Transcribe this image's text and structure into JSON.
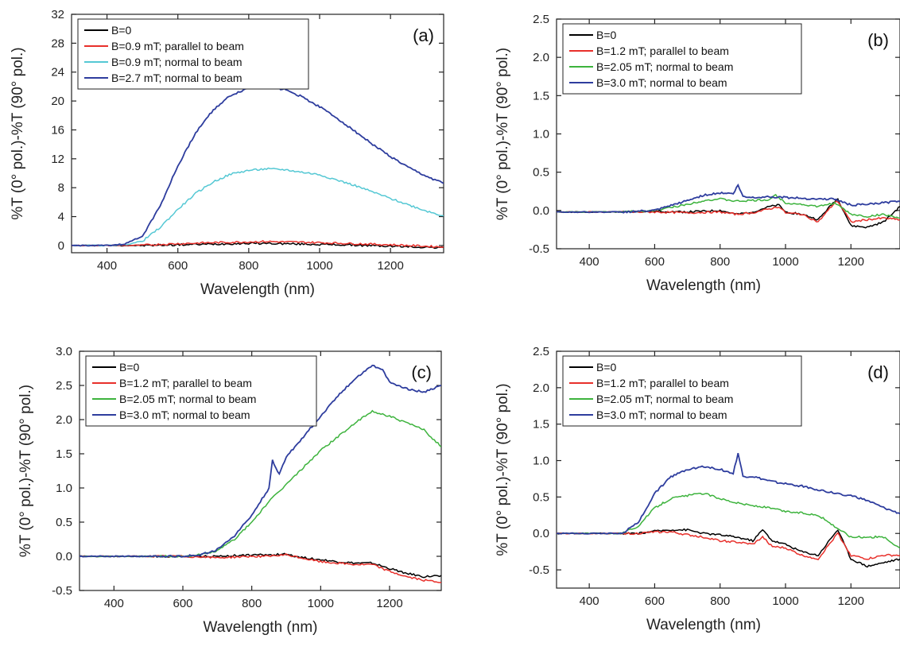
{
  "chart_data": [
    {
      "panel": "(a)",
      "type": "line",
      "xlabel": "Wavelength (nm)",
      "ylabel": "%T (0° pol.)-%T (90° pol.)",
      "xlim": [
        300,
        1350
      ],
      "ylim": [
        -1,
        32
      ],
      "xticks": [
        400,
        600,
        800,
        1000,
        1200
      ],
      "yticks": [
        0,
        4,
        8,
        12,
        16,
        20,
        24,
        28,
        32
      ],
      "legend_position": "top-left",
      "series": [
        {
          "name": "B=0",
          "color": "#000000",
          "x": [
            300,
            400,
            500,
            600,
            700,
            800,
            850,
            900,
            1000,
            1100,
            1200,
            1350
          ],
          "y": [
            0,
            0,
            0,
            0.1,
            0.2,
            0.3,
            0.3,
            0.25,
            0.15,
            0.05,
            -0.1,
            -0.3
          ]
        },
        {
          "name": "B=0.9 mT; parallel to beam",
          "color": "#e8302b",
          "x": [
            300,
            400,
            450,
            500,
            550,
            600,
            700,
            800,
            850,
            900,
            1000,
            1100,
            1200,
            1350
          ],
          "y": [
            0,
            0,
            0,
            0.05,
            0.15,
            0.25,
            0.4,
            0.5,
            0.55,
            0.5,
            0.4,
            0.25,
            0.1,
            -0.2
          ]
        },
        {
          "name": "B=0.9 mT; normal to beam",
          "color": "#55c8d4",
          "x": [
            300,
            400,
            450,
            500,
            550,
            600,
            650,
            700,
            750,
            800,
            850,
            900,
            1000,
            1100,
            1200,
            1300,
            1350
          ],
          "y": [
            0,
            0,
            0.1,
            0.6,
            2.5,
            5.0,
            7.2,
            8.8,
            9.9,
            10.4,
            10.6,
            10.5,
            9.8,
            8.3,
            6.5,
            4.8,
            4.1
          ]
        },
        {
          "name": "B=2.7 mT; normal to beam",
          "color": "#2e3d9e",
          "x": [
            300,
            400,
            450,
            500,
            550,
            600,
            650,
            700,
            750,
            800,
            850,
            900,
            950,
            1000,
            1050,
            1100,
            1150,
            1200,
            1250,
            1300,
            1350
          ],
          "y": [
            0,
            0,
            0.2,
            1.3,
            5.5,
            11.0,
            15.6,
            18.8,
            20.8,
            21.8,
            22.0,
            21.6,
            20.6,
            19.2,
            17.6,
            15.8,
            14.0,
            12.3,
            10.8,
            9.6,
            8.6
          ]
        }
      ]
    },
    {
      "panel": "(b)",
      "type": "line",
      "xlabel": "Wavelength (nm)",
      "ylabel": "%T (0° pol.)-%T (90° pol.)",
      "xlim": [
        300,
        1350
      ],
      "ylim": [
        -0.5,
        2.5
      ],
      "xticks": [
        400,
        600,
        800,
        1000,
        1200
      ],
      "yticks": [
        -0.5,
        0.0,
        0.5,
        1.0,
        1.5,
        2.0,
        2.5
      ],
      "legend_position": "top-left",
      "series": [
        {
          "name": "B=0",
          "color": "#000000",
          "x": [
            300,
            500,
            600,
            700,
            800,
            850,
            900,
            950,
            980,
            1000,
            1050,
            1100,
            1150,
            1160,
            1200,
            1250,
            1300,
            1350
          ],
          "y": [
            -0.02,
            -0.02,
            -0.01,
            -0.02,
            0.0,
            -0.05,
            -0.02,
            0.05,
            0.07,
            -0.02,
            -0.05,
            -0.12,
            0.12,
            0.15,
            -0.2,
            -0.22,
            -0.15,
            0.05
          ]
        },
        {
          "name": "B=1.2 mT; parallel to beam",
          "color": "#e8302b",
          "x": [
            300,
            500,
            600,
            700,
            800,
            850,
            900,
            950,
            980,
            1000,
            1050,
            1100,
            1150,
            1160,
            1200,
            1250,
            1300,
            1350
          ],
          "y": [
            -0.02,
            -0.02,
            -0.02,
            -0.03,
            -0.02,
            -0.05,
            -0.03,
            0.02,
            0.05,
            -0.03,
            -0.05,
            -0.15,
            0.1,
            0.12,
            -0.15,
            -0.12,
            -0.1,
            -0.12
          ]
        },
        {
          "name": "B=2.05 mT; normal to beam",
          "color": "#3db33d",
          "x": [
            300,
            500,
            600,
            700,
            750,
            800,
            850,
            900,
            950,
            970,
            1000,
            1050,
            1100,
            1150,
            1200,
            1250,
            1300,
            1350
          ],
          "y": [
            -0.02,
            -0.02,
            0.0,
            0.08,
            0.13,
            0.15,
            0.12,
            0.13,
            0.14,
            0.2,
            0.1,
            0.08,
            0.05,
            0.1,
            -0.05,
            -0.08,
            -0.05,
            -0.1
          ]
        },
        {
          "name": "B=3.0 mT; normal to beam",
          "color": "#2e3d9e",
          "x": [
            300,
            500,
            600,
            700,
            750,
            800,
            840,
            855,
            870,
            900,
            950,
            1000,
            1050,
            1100,
            1150,
            1200,
            1250,
            1300,
            1350
          ],
          "y": [
            -0.02,
            -0.02,
            0.0,
            0.13,
            0.2,
            0.23,
            0.22,
            0.33,
            0.18,
            0.17,
            0.18,
            0.17,
            0.16,
            0.15,
            0.15,
            0.07,
            0.08,
            0.1,
            0.12
          ]
        }
      ]
    },
    {
      "panel": "(c)",
      "type": "line",
      "xlabel": "Wavelength (nm)",
      "ylabel": "%T (0° pol.)-%T (90° pol.)",
      "xlim": [
        300,
        1350
      ],
      "ylim": [
        -0.5,
        3.0
      ],
      "xticks": [
        400,
        600,
        800,
        1000,
        1200
      ],
      "yticks": [
        -0.5,
        0.0,
        0.5,
        1.0,
        1.5,
        2.0,
        2.5,
        3.0
      ],
      "legend_position": "top-left",
      "series": [
        {
          "name": "B=0",
          "color": "#000000",
          "x": [
            300,
            500,
            600,
            700,
            800,
            850,
            900,
            950,
            1000,
            1050,
            1100,
            1150,
            1200,
            1250,
            1300,
            1350
          ],
          "y": [
            0,
            0,
            0,
            0,
            0.02,
            0.02,
            0.03,
            -0.02,
            -0.05,
            -0.08,
            -0.1,
            -0.1,
            -0.18,
            -0.25,
            -0.3,
            -0.28
          ]
        },
        {
          "name": "B=1.2 mT; parallel to beam",
          "color": "#e8302b",
          "x": [
            300,
            500,
            600,
            700,
            800,
            850,
            900,
            950,
            1000,
            1050,
            1100,
            1150,
            1200,
            1250,
            1300,
            1350
          ],
          "y": [
            0,
            0,
            0,
            -0.02,
            0.0,
            0.0,
            0.02,
            -0.03,
            -0.08,
            -0.1,
            -0.12,
            -0.12,
            -0.22,
            -0.3,
            -0.35,
            -0.38
          ]
        },
        {
          "name": "B=2.05 mT; normal to beam",
          "color": "#3db33d",
          "x": [
            300,
            600,
            650,
            700,
            750,
            800,
            850,
            900,
            950,
            1000,
            1050,
            1100,
            1150,
            1200,
            1250,
            1300,
            1350
          ],
          "y": [
            0,
            0,
            0.02,
            0.08,
            0.25,
            0.5,
            0.8,
            1.05,
            1.3,
            1.55,
            1.75,
            1.95,
            2.12,
            2.05,
            1.95,
            1.85,
            1.6
          ]
        },
        {
          "name": "B=3.0 mT; normal to beam",
          "color": "#2e3d9e",
          "x": [
            300,
            600,
            650,
            700,
            750,
            800,
            850,
            860,
            880,
            900,
            950,
            1000,
            1050,
            1100,
            1150,
            1180,
            1200,
            1250,
            1300,
            1350
          ],
          "y": [
            0,
            0,
            0.02,
            0.1,
            0.3,
            0.6,
            1.0,
            1.4,
            1.2,
            1.45,
            1.75,
            2.05,
            2.35,
            2.6,
            2.8,
            2.72,
            2.55,
            2.45,
            2.4,
            2.5
          ]
        }
      ]
    },
    {
      "panel": "(d)",
      "type": "line",
      "xlabel": "Wavelength (nm)",
      "ylabel": "%T (0° pol.)-%T (90° pol.)",
      "xlim": [
        300,
        1350
      ],
      "ylim": [
        -0.75,
        2.5
      ],
      "xticks": [
        400,
        600,
        800,
        1000,
        1200
      ],
      "yticks": [
        -0.5,
        0.0,
        0.5,
        1.0,
        1.5,
        2.0,
        2.5
      ],
      "legend_position": "top-left",
      "series": [
        {
          "name": "B=0",
          "color": "#000000",
          "x": [
            300,
            500,
            550,
            600,
            650,
            700,
            750,
            800,
            850,
            900,
            930,
            960,
            1000,
            1050,
            1100,
            1150,
            1160,
            1200,
            1250,
            1300,
            1350
          ],
          "y": [
            0,
            0,
            0,
            0.03,
            0.05,
            0.05,
            0.0,
            -0.02,
            -0.05,
            -0.1,
            0.05,
            -0.1,
            -0.15,
            -0.25,
            -0.3,
            0.0,
            0.05,
            -0.35,
            -0.45,
            -0.4,
            -0.35
          ]
        },
        {
          "name": "B=1.2 mT; parallel to beam",
          "color": "#e8302b",
          "x": [
            300,
            500,
            550,
            600,
            650,
            700,
            750,
            800,
            850,
            900,
            930,
            960,
            1000,
            1050,
            1100,
            1150,
            1160,
            1200,
            1250,
            1300,
            1350
          ],
          "y": [
            0,
            0,
            0,
            0.02,
            0.02,
            -0.02,
            -0.05,
            -0.1,
            -0.12,
            -0.15,
            -0.05,
            -0.18,
            -0.2,
            -0.3,
            -0.35,
            -0.05,
            0.0,
            -0.3,
            -0.35,
            -0.3,
            -0.3
          ]
        },
        {
          "name": "B=2.05 mT; normal to beam",
          "color": "#3db33d",
          "x": [
            300,
            500,
            550,
            600,
            650,
            700,
            750,
            800,
            850,
            900,
            950,
            1000,
            1050,
            1100,
            1150,
            1200,
            1250,
            1300,
            1350
          ],
          "y": [
            0,
            0,
            0.1,
            0.35,
            0.48,
            0.52,
            0.55,
            0.48,
            0.42,
            0.38,
            0.35,
            0.3,
            0.28,
            0.25,
            0.1,
            -0.05,
            -0.05,
            -0.05,
            -0.2
          ]
        },
        {
          "name": "B=3.0 mT; normal to beam",
          "color": "#2e3d9e",
          "x": [
            300,
            500,
            550,
            600,
            650,
            700,
            750,
            800,
            840,
            855,
            870,
            900,
            950,
            1000,
            1050,
            1100,
            1150,
            1200,
            1250,
            1300,
            1350
          ],
          "y": [
            0,
            0,
            0.15,
            0.55,
            0.78,
            0.88,
            0.92,
            0.88,
            0.82,
            1.1,
            0.78,
            0.78,
            0.72,
            0.68,
            0.65,
            0.6,
            0.55,
            0.52,
            0.45,
            0.35,
            0.27
          ]
        }
      ]
    }
  ]
}
